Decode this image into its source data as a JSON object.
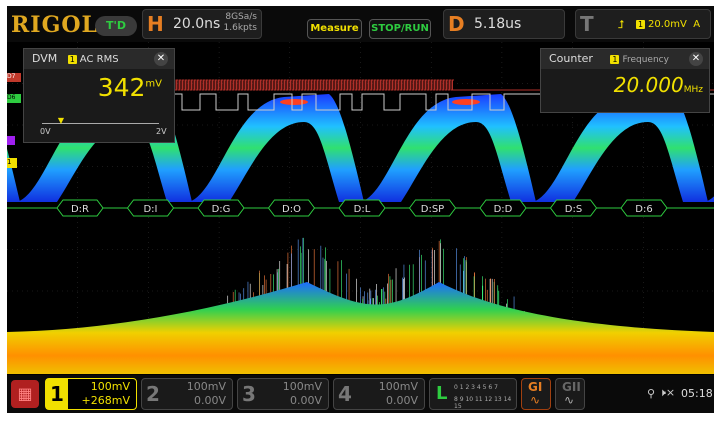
{
  "header": {
    "logo": "RIGOL",
    "mode": "T'D",
    "h_label": "H",
    "timebase": "20.0ns",
    "sample_rate": "8GSa/s",
    "memory": "1.6kpts",
    "measure": "Measure",
    "stop_run": "STOP/RUN",
    "d_label": "D",
    "delay": "5.18us",
    "t_label": "T",
    "trigger_source": "1",
    "trigger_level": "20.0mV",
    "trigger_mode": "A"
  },
  "dvm": {
    "title": "DVM",
    "source": "1",
    "mode": "AC RMS",
    "value": "342",
    "unit": "mV",
    "scale_min": "0V",
    "scale_max": "2V",
    "level": 0.17
  },
  "counter": {
    "title": "Counter",
    "source": "1",
    "mode": "Frequency",
    "value": "20.000",
    "unit": "MHz"
  },
  "markers": {
    "d7": "D7",
    "d6": "D6",
    "ch1": "1"
  },
  "decode": [
    "D:R",
    "D:I",
    "D:G",
    "D:O",
    "D:L",
    "D:SP",
    "D:D",
    "D:S",
    "D:6"
  ],
  "channels": [
    {
      "num": "1",
      "scale": "100mV",
      "offset": "+268mV",
      "active": true
    },
    {
      "num": "2",
      "scale": "100mV",
      "offset": "0.00V",
      "active": false
    },
    {
      "num": "3",
      "scale": "100mV",
      "offset": "0.00V",
      "active": false
    },
    {
      "num": "4",
      "scale": "100mV",
      "offset": "0.00V",
      "active": false
    }
  ],
  "logic": {
    "label": "L",
    "row1": "0 1 2 3 4 5 6 7",
    "row2": "8 9 10 11 12 13 14 15"
  },
  "gen1": "GI",
  "gen2": "GII",
  "status": {
    "time": "05:18"
  },
  "colors": {
    "ch1": "#f1e000",
    "accent": "#e67e22",
    "digital": "#2ecc40",
    "d7": "#c0392b"
  }
}
